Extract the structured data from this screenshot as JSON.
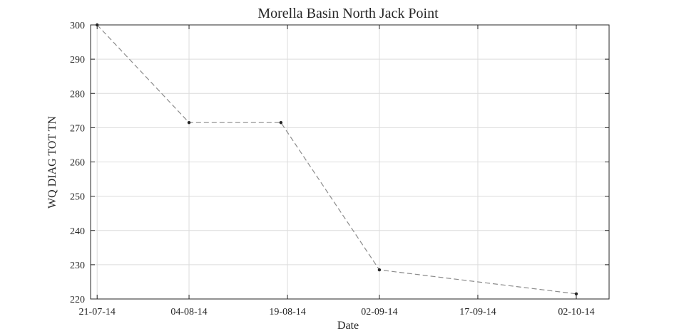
{
  "chart_data": {
    "type": "line",
    "title": "Morella Basin North Jack Point",
    "xlabel": "Date",
    "ylabel": "WQ DIAG TOT TN",
    "xlim": [
      "2014-07-20",
      "2014-10-07"
    ],
    "ylim": [
      220,
      300
    ],
    "x_ticks": [
      {
        "date": "2014-07-21",
        "label": "21-07-14"
      },
      {
        "date": "2014-08-04",
        "label": "04-08-14"
      },
      {
        "date": "2014-08-19",
        "label": "19-08-14"
      },
      {
        "date": "2014-09-02",
        "label": "02-09-14"
      },
      {
        "date": "2014-09-17",
        "label": "17-09-14"
      },
      {
        "date": "2014-10-02",
        "label": "02-10-14"
      }
    ],
    "y_ticks": [
      220,
      230,
      240,
      250,
      260,
      270,
      280,
      290,
      300
    ],
    "grid": true,
    "series": [
      {
        "line_style": "dashed",
        "line_color": "#8c8c8c",
        "marker_color": "#262626",
        "points": [
          {
            "x": "2014-07-21",
            "y": 300.0
          },
          {
            "x": "2014-08-04",
            "y": 271.5
          },
          {
            "x": "2014-08-18",
            "y": 271.5
          },
          {
            "x": "2014-09-02",
            "y": 228.5
          },
          {
            "x": "2014-10-02",
            "y": 221.5
          }
        ]
      }
    ]
  }
}
